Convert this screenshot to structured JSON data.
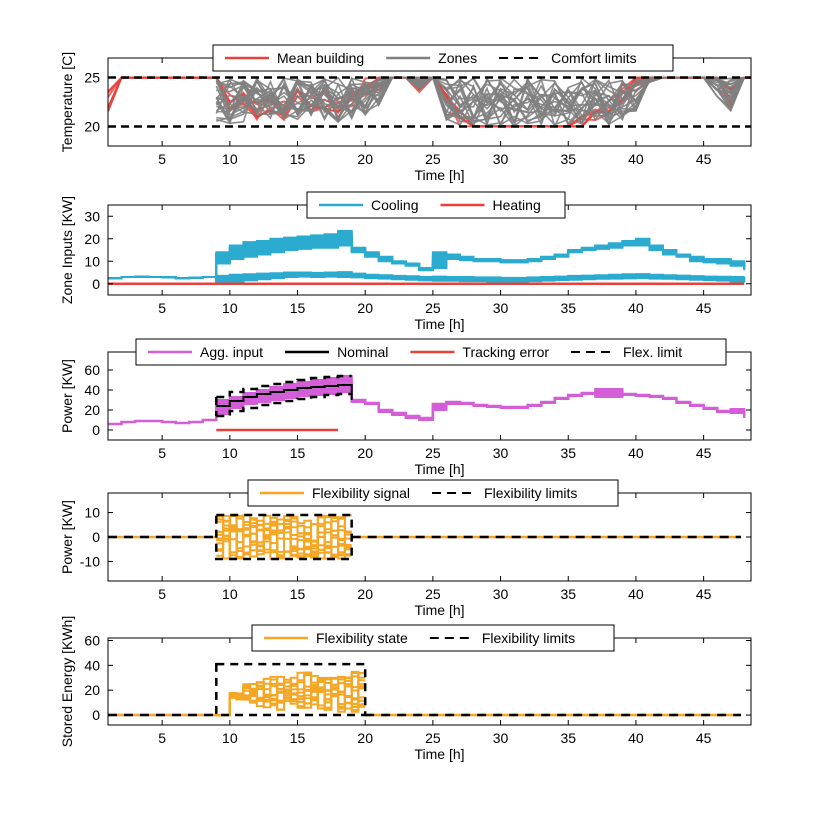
{
  "chart_data": [
    {
      "type": "line",
      "xlabel": "Time [h]",
      "ylabel": "Temperature [C]",
      "xlim": [
        1,
        48.5
      ],
      "ylim": [
        18,
        27
      ],
      "xticks": [
        5,
        10,
        15,
        20,
        25,
        30,
        35,
        40,
        45
      ],
      "yticks": [
        20,
        25
      ],
      "legend_position": "top-center",
      "series": [
        {
          "name": "Mean building",
          "color": "#e8403b",
          "style": "solid",
          "x": [
            1,
            2,
            3,
            4,
            5,
            6,
            7,
            8,
            9,
            10,
            11,
            12,
            13,
            14,
            15,
            16,
            17,
            18,
            19,
            20,
            21,
            22,
            23,
            24,
            25,
            26,
            27,
            28,
            29,
            30,
            31,
            32,
            33,
            34,
            35,
            36,
            37,
            38,
            39,
            40,
            41,
            42,
            43,
            44,
            45,
            46,
            47,
            48,
            48.5
          ],
          "values": [
            22.5,
            25,
            25,
            25,
            25,
            25,
            25,
            25,
            25,
            22.6,
            22.8,
            21.8,
            22.6,
            21.5,
            22.8,
            22,
            22.6,
            21.9,
            22.4,
            23.9,
            24.5,
            25,
            25,
            24.3,
            25,
            22.2,
            20.8,
            20,
            20,
            20,
            20,
            20,
            20,
            20,
            20,
            20.6,
            21.5,
            22.1,
            23.5,
            24.5,
            25,
            25,
            25,
            25,
            25,
            25,
            23,
            25,
            25
          ]
        },
        {
          "name": "Zones",
          "color": "#808080",
          "style": "solid",
          "x": [
            9,
            10,
            11,
            12,
            13,
            14,
            15,
            16,
            17,
            18,
            19,
            20,
            21,
            22,
            23,
            24,
            25,
            26,
            27,
            28,
            29,
            30,
            31,
            32,
            33,
            34,
            35,
            36,
            37,
            38,
            39,
            40,
            41,
            42,
            43,
            44,
            45,
            46,
            47,
            48
          ],
          "upper": [
            25,
            25,
            25,
            25,
            25,
            25,
            25,
            25,
            25,
            25,
            25,
            25,
            25,
            25,
            25,
            25,
            25,
            25,
            25,
            25,
            25,
            25,
            25,
            25,
            25,
            25,
            24,
            25,
            25,
            25,
            25,
            25,
            25,
            25,
            25,
            25,
            25,
            25,
            25,
            25
          ],
          "lower": [
            20.3,
            20.3,
            20.4,
            20.5,
            20.4,
            20.4,
            20.5,
            20.5,
            20.5,
            20.4,
            20.5,
            21,
            22,
            25,
            25,
            23.8,
            25,
            20.5,
            20,
            20,
            20,
            20,
            20,
            20,
            20,
            20,
            20,
            20,
            20,
            20,
            20.5,
            21.5,
            24.5,
            25,
            25,
            25,
            25,
            23,
            20.5,
            25
          ]
        },
        {
          "name": "Comfort limits",
          "color": "#000000",
          "style": "dashed",
          "x": [
            1,
            48.5
          ],
          "upper": [
            25,
            25
          ],
          "lower": [
            20,
            20
          ]
        }
      ]
    },
    {
      "type": "line",
      "xlabel": "Time [h]",
      "ylabel": "Zone Inputs [KW]",
      "xlim": [
        1,
        48.5
      ],
      "ylim": [
        -5,
        35
      ],
      "xticks": [
        5,
        10,
        15,
        20,
        25,
        30,
        35,
        40,
        45
      ],
      "yticks": [
        0,
        10,
        20,
        30
      ],
      "legend_position": "top-center",
      "series": [
        {
          "name": "Cooling",
          "color": "#2aabcf",
          "style": "solid",
          "x": [
            1,
            2,
            3,
            4,
            5,
            6,
            7,
            8,
            9,
            10,
            11,
            12,
            13,
            14,
            15,
            16,
            17,
            18,
            19,
            20,
            21,
            22,
            23,
            24,
            25,
            26,
            27,
            28,
            29,
            30,
            31,
            32,
            33,
            34,
            35,
            36,
            37,
            38,
            39,
            40,
            41,
            42,
            43,
            44,
            45,
            46,
            47,
            48
          ],
          "high_upper": [
            2.5,
            3,
            3.2,
            3,
            2.8,
            2.5,
            2.6,
            3,
            14,
            17,
            18.5,
            19,
            20,
            20.5,
            21,
            21.5,
            22,
            23.5,
            16,
            14,
            12,
            10,
            9,
            7,
            14,
            13,
            12,
            11,
            11,
            10.5,
            10.5,
            11,
            12,
            13,
            15,
            16,
            17,
            18,
            19,
            20,
            17,
            15,
            13,
            12,
            11,
            11,
            10,
            9
          ],
          "high_lower": [
            2.5,
            3,
            3.2,
            3,
            2.8,
            2.5,
            2.6,
            3,
            9,
            11,
            12,
            13,
            14,
            15,
            15.5,
            16,
            16,
            17,
            14,
            12,
            10,
            9,
            8,
            6,
            7,
            11,
            10.5,
            10,
            10,
            9.5,
            9.5,
            10,
            11,
            12,
            14,
            15,
            15.5,
            16,
            17,
            17,
            15,
            13,
            12,
            10,
            9.5,
            9,
            8,
            6
          ],
          "low_upper": [
            2.5,
            3,
            3.2,
            3,
            2.8,
            2.5,
            2.6,
            3,
            3.5,
            4,
            4.2,
            4.5,
            4.7,
            5,
            5,
            4.8,
            5,
            5.2,
            4.5,
            4,
            3.8,
            3.5,
            3.3,
            3,
            3.2,
            3,
            3,
            2.8,
            2.8,
            2.6,
            2.6,
            2.8,
            3,
            3.2,
            3.5,
            3.6,
            3.8,
            4,
            4.2,
            4.3,
            4,
            3.8,
            3.6,
            3.4,
            3.2,
            3.1,
            3,
            3
          ],
          "low_lower": [
            2.5,
            3,
            3.2,
            3,
            2.8,
            2.5,
            2.6,
            3,
            0,
            0,
            1.5,
            2,
            2.5,
            3,
            3.2,
            3,
            3.2,
            3,
            2.8,
            2.5,
            2.3,
            2,
            1.8,
            1.5,
            1.3,
            1.3,
            1.2,
            1.2,
            1,
            1,
            1,
            1.2,
            1.4,
            1.6,
            1.8,
            2,
            2.2,
            2.3,
            2.4,
            2.5,
            2.3,
            2.2,
            2,
            1.8,
            1.6,
            1.4,
            1,
            0.5
          ]
        },
        {
          "name": "Heating",
          "color": "#e8403b",
          "style": "solid",
          "x": [
            1,
            48
          ],
          "values": [
            0,
            0
          ]
        }
      ]
    },
    {
      "type": "line",
      "xlabel": "Time [h]",
      "ylabel": "Power [KW]",
      "xlim": [
        1,
        48.5
      ],
      "ylim": [
        -10,
        78
      ],
      "xticks": [
        5,
        10,
        15,
        20,
        25,
        30,
        35,
        40,
        45
      ],
      "yticks": [
        0,
        20,
        40,
        60
      ],
      "legend_position": "top-center",
      "series": [
        {
          "name": "Agg. input",
          "color": "#d45ed8",
          "style": "solid",
          "x": [
            1,
            2,
            3,
            4,
            5,
            6,
            7,
            8,
            9,
            10,
            11,
            12,
            13,
            14,
            15,
            16,
            17,
            18,
            19,
            20,
            21,
            22,
            23,
            24,
            25,
            26,
            27,
            28,
            29,
            30,
            31,
            32,
            33,
            34,
            35,
            36,
            37,
            38,
            39,
            40,
            41,
            42,
            43,
            44,
            45,
            46,
            47,
            48
          ],
          "values": [
            6,
            8,
            9,
            9,
            8,
            7,
            8,
            10,
            22,
            28,
            32,
            35,
            37,
            40,
            42,
            44,
            45,
            46,
            30,
            27,
            20,
            17,
            14,
            12,
            26,
            28,
            27,
            25,
            24,
            23,
            23,
            25,
            28,
            32,
            35,
            37,
            38,
            38,
            36,
            35,
            34,
            32,
            28,
            25,
            22,
            19,
            19,
            14
          ],
          "band_upper": [
            6,
            8,
            9,
            9,
            8,
            7,
            8,
            10,
            30,
            33,
            37,
            40,
            43,
            46,
            48,
            50,
            52,
            54,
            30,
            27,
            20,
            17,
            14,
            12,
            26,
            28,
            27,
            25,
            24,
            23,
            23,
            25,
            28,
            32,
            35,
            37,
            41,
            41,
            36,
            35,
            34,
            32,
            28,
            25,
            22,
            19,
            21,
            16
          ],
          "band_lower": [
            6,
            8,
            9,
            9,
            8,
            7,
            8,
            10,
            16,
            22,
            26,
            28,
            30,
            32,
            34,
            35,
            36,
            38,
            28,
            26,
            18,
            15,
            12,
            10,
            20,
            26,
            26,
            24,
            23,
            22,
            22,
            24,
            27,
            31,
            34,
            36,
            33,
            33,
            35,
            34,
            33,
            31,
            27,
            24,
            21,
            18,
            17,
            12
          ]
        },
        {
          "name": "Nominal",
          "color": "#000000",
          "style": "solid",
          "x": [
            9,
            10,
            11,
            12,
            13,
            14,
            15,
            16,
            17,
            18,
            19
          ],
          "values": [
            24,
            29,
            33,
            36,
            38,
            40,
            42,
            43,
            44,
            45,
            30
          ]
        },
        {
          "name": "Tracking error",
          "color": "#e8403b",
          "style": "solid",
          "x": [
            9,
            18
          ],
          "values": [
            0,
            0
          ]
        },
        {
          "name": "Flex. limit",
          "color": "#000000",
          "style": "dashed",
          "x": [
            9,
            10,
            11,
            12,
            13,
            14,
            15,
            16,
            17,
            18,
            19
          ],
          "upper": [
            33,
            38,
            41,
            44,
            46,
            48,
            50,
            52,
            53,
            54,
            54
          ],
          "lower": [
            14,
            19,
            22,
            25,
            27,
            29,
            31,
            33,
            35,
            36,
            36
          ]
        }
      ]
    },
    {
      "type": "line",
      "xlabel": "Time [h]",
      "ylabel": "Power [KW]",
      "xlim": [
        1,
        48.5
      ],
      "ylim": [
        -18,
        18
      ],
      "xticks": [
        5,
        10,
        15,
        20,
        25,
        30,
        35,
        40,
        45
      ],
      "yticks": [
        -10,
        0,
        10
      ],
      "legend_position": "top-center",
      "series": [
        {
          "name": "Flexibility signal",
          "color": "#f5a623",
          "style": "solid",
          "x": [
            9,
            10,
            11,
            12,
            13,
            14,
            15,
            16,
            17,
            18,
            19
          ],
          "upper": [
            9,
            9,
            9,
            9,
            9,
            9,
            9,
            9,
            9,
            9,
            9
          ],
          "lower": [
            -9,
            -9,
            -9,
            -9,
            -9,
            -9,
            -9,
            -9,
            -9,
            -9,
            -9
          ],
          "outside": 0
        },
        {
          "name": "Flexibility limits",
          "color": "#000000",
          "style": "dashed",
          "x": [
            9,
            19
          ],
          "upper": [
            9,
            9
          ],
          "lower": [
            -9,
            -9
          ]
        }
      ]
    },
    {
      "type": "line",
      "xlabel": "Time [h]",
      "ylabel": "Stored Energy [KWh]",
      "xlim": [
        1,
        48.5
      ],
      "ylim": [
        -8,
        62
      ],
      "xticks": [
        5,
        10,
        15,
        20,
        25,
        30,
        35,
        40,
        45
      ],
      "yticks": [
        0,
        20,
        40,
        60
      ],
      "legend_position": "top-center",
      "series": [
        {
          "name": "Flexibility state",
          "color": "#f5a623",
          "style": "solid",
          "x": [
            9,
            10,
            11,
            12,
            13,
            14,
            15,
            16,
            17,
            18,
            19,
            20
          ],
          "upper": [
            0,
            18,
            25,
            30,
            32,
            33,
            35,
            33,
            32,
            34,
            36,
            36
          ],
          "lower": [
            0,
            12,
            10,
            5,
            4,
            8,
            2,
            5,
            3,
            2,
            0,
            0
          ],
          "outside": 0
        },
        {
          "name": "Flexibility limits",
          "color": "#000000",
          "style": "dashed",
          "x": [
            9,
            20
          ],
          "upper": [
            41,
            41
          ],
          "lower": [
            0,
            0
          ]
        }
      ]
    }
  ]
}
